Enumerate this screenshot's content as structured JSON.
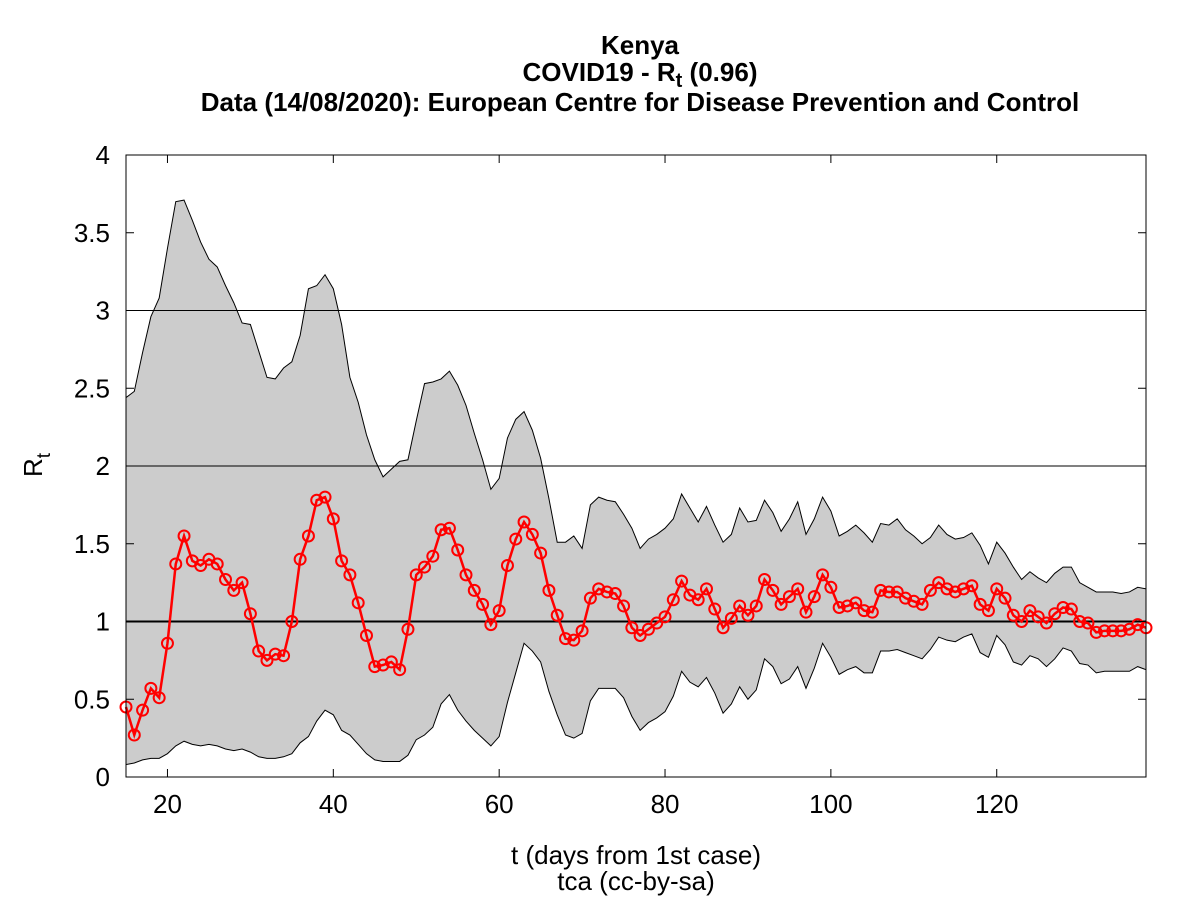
{
  "chart_data": {
    "type": "line",
    "title": "Kenya",
    "subtitle_prefix": "COVID19 - R",
    "subtitle_sub": "t",
    "subtitle_suffix": " (0.96)",
    "source_line": "Data (14/08/2020): European Centre for Disease Prevention and Control",
    "xlabel": "t (days from 1st case)",
    "ylabel": "R",
    "ylabel_sub": "t",
    "credit": "tca (cc-by-sa)",
    "xlim": [
      15,
      138
    ],
    "ylim": [
      0,
      4
    ],
    "xticks": [
      20,
      40,
      60,
      80,
      100,
      120
    ],
    "yticks": [
      0,
      0.5,
      1,
      1.5,
      2,
      2.5,
      3,
      3.5,
      4
    ],
    "ytick_labels": [
      "0",
      "0.5",
      "1",
      "1.5",
      "2",
      "2.5",
      "3",
      "3.5",
      "4"
    ],
    "gridlines_y": [
      1,
      2,
      3
    ],
    "reference_line": 1,
    "colors": {
      "series": "#ff0000",
      "band": "#cccccc",
      "band_edge": "#000000",
      "grid": "#000000"
    },
    "series": [
      {
        "values": [
          [
            15,
            0.45
          ],
          [
            16,
            0.27
          ],
          [
            17,
            0.43
          ],
          [
            18,
            0.57
          ],
          [
            19,
            0.51
          ],
          [
            20,
            0.86
          ],
          [
            21,
            1.37
          ],
          [
            22,
            1.55
          ],
          [
            23,
            1.39
          ],
          [
            24,
            1.36
          ],
          [
            25,
            1.4
          ],
          [
            26,
            1.37
          ],
          [
            27,
            1.27
          ],
          [
            28,
            1.2
          ],
          [
            29,
            1.25
          ],
          [
            30,
            1.05
          ],
          [
            31,
            0.81
          ],
          [
            32,
            0.75
          ],
          [
            33,
            0.79
          ],
          [
            34,
            0.78
          ],
          [
            35,
            1.0
          ],
          [
            36,
            1.4
          ],
          [
            37,
            1.55
          ],
          [
            38,
            1.78
          ],
          [
            39,
            1.8
          ],
          [
            40,
            1.66
          ],
          [
            41,
            1.39
          ],
          [
            42,
            1.3
          ],
          [
            43,
            1.12
          ],
          [
            44,
            0.91
          ],
          [
            45,
            0.71
          ],
          [
            46,
            0.72
          ],
          [
            47,
            0.74
          ],
          [
            48,
            0.69
          ],
          [
            49,
            0.95
          ],
          [
            50,
            1.3
          ],
          [
            51,
            1.35
          ],
          [
            52,
            1.42
          ],
          [
            53,
            1.59
          ],
          [
            54,
            1.6
          ],
          [
            55,
            1.46
          ],
          [
            56,
            1.3
          ],
          [
            57,
            1.2
          ],
          [
            58,
            1.11
          ],
          [
            59,
            0.98
          ],
          [
            60,
            1.07
          ],
          [
            61,
            1.36
          ],
          [
            62,
            1.53
          ],
          [
            63,
            1.64
          ],
          [
            64,
            1.56
          ],
          [
            65,
            1.44
          ],
          [
            66,
            1.2
          ],
          [
            67,
            1.04
          ],
          [
            68,
            0.89
          ],
          [
            69,
            0.88
          ],
          [
            70,
            0.94
          ],
          [
            71,
            1.15
          ],
          [
            72,
            1.21
          ],
          [
            73,
            1.19
          ],
          [
            74,
            1.18
          ],
          [
            75,
            1.1
          ],
          [
            76,
            0.96
          ],
          [
            77,
            0.91
          ],
          [
            78,
            0.95
          ],
          [
            79,
            0.99
          ],
          [
            80,
            1.03
          ],
          [
            81,
            1.14
          ],
          [
            82,
            1.26
          ],
          [
            83,
            1.17
          ],
          [
            84,
            1.14
          ],
          [
            85,
            1.21
          ],
          [
            86,
            1.08
          ],
          [
            87,
            0.96
          ],
          [
            88,
            1.02
          ],
          [
            89,
            1.1
          ],
          [
            90,
            1.04
          ],
          [
            91,
            1.1
          ],
          [
            92,
            1.27
          ],
          [
            93,
            1.2
          ],
          [
            94,
            1.11
          ],
          [
            95,
            1.16
          ],
          [
            96,
            1.21
          ],
          [
            97,
            1.06
          ],
          [
            98,
            1.16
          ],
          [
            99,
            1.3
          ],
          [
            100,
            1.22
          ],
          [
            101,
            1.09
          ],
          [
            102,
            1.1
          ],
          [
            103,
            1.12
          ],
          [
            104,
            1.07
          ],
          [
            105,
            1.06
          ],
          [
            106,
            1.2
          ],
          [
            107,
            1.19
          ],
          [
            108,
            1.19
          ],
          [
            109,
            1.15
          ],
          [
            110,
            1.13
          ],
          [
            111,
            1.11
          ],
          [
            112,
            1.2
          ],
          [
            113,
            1.25
          ],
          [
            114,
            1.21
          ],
          [
            115,
            1.19
          ],
          [
            116,
            1.21
          ],
          [
            117,
            1.23
          ],
          [
            118,
            1.11
          ],
          [
            119,
            1.07
          ],
          [
            120,
            1.21
          ],
          [
            121,
            1.15
          ],
          [
            122,
            1.04
          ],
          [
            123,
            1.0
          ],
          [
            124,
            1.07
          ],
          [
            125,
            1.03
          ],
          [
            126,
            0.99
          ],
          [
            127,
            1.05
          ],
          [
            128,
            1.09
          ],
          [
            129,
            1.08
          ],
          [
            130,
            1.0
          ],
          [
            131,
            0.99
          ],
          [
            132,
            0.93
          ],
          [
            133,
            0.94
          ],
          [
            134,
            0.94
          ],
          [
            135,
            0.94
          ],
          [
            136,
            0.95
          ],
          [
            137,
            0.98
          ],
          [
            138,
            0.96
          ]
        ]
      }
    ],
    "band_upper": [
      [
        15,
        2.44
      ],
      [
        16,
        2.48
      ],
      [
        17,
        2.73
      ],
      [
        18,
        2.96
      ],
      [
        19,
        3.08
      ],
      [
        20,
        3.4
      ],
      [
        21,
        3.7
      ],
      [
        22,
        3.71
      ],
      [
        23,
        3.58
      ],
      [
        24,
        3.44
      ],
      [
        25,
        3.33
      ],
      [
        26,
        3.28
      ],
      [
        27,
        3.16
      ],
      [
        28,
        3.05
      ],
      [
        29,
        2.92
      ],
      [
        30,
        2.91
      ],
      [
        31,
        2.74
      ],
      [
        32,
        2.57
      ],
      [
        33,
        2.56
      ],
      [
        34,
        2.63
      ],
      [
        35,
        2.67
      ],
      [
        36,
        2.84
      ],
      [
        37,
        3.14
      ],
      [
        38,
        3.16
      ],
      [
        39,
        3.23
      ],
      [
        40,
        3.14
      ],
      [
        41,
        2.91
      ],
      [
        42,
        2.57
      ],
      [
        43,
        2.41
      ],
      [
        44,
        2.2
      ],
      [
        45,
        2.04
      ],
      [
        46,
        1.93
      ],
      [
        47,
        1.98
      ],
      [
        48,
        2.03
      ],
      [
        49,
        2.04
      ],
      [
        50,
        2.29
      ],
      [
        51,
        2.53
      ],
      [
        52,
        2.54
      ],
      [
        53,
        2.56
      ],
      [
        54,
        2.61
      ],
      [
        55,
        2.52
      ],
      [
        56,
        2.39
      ],
      [
        57,
        2.21
      ],
      [
        58,
        2.04
      ],
      [
        59,
        1.85
      ],
      [
        60,
        1.92
      ],
      [
        61,
        2.18
      ],
      [
        62,
        2.3
      ],
      [
        63,
        2.35
      ],
      [
        64,
        2.23
      ],
      [
        65,
        2.05
      ],
      [
        66,
        1.79
      ],
      [
        67,
        1.51
      ],
      [
        68,
        1.51
      ],
      [
        69,
        1.55
      ],
      [
        70,
        1.47
      ],
      [
        71,
        1.75
      ],
      [
        72,
        1.8
      ],
      [
        73,
        1.78
      ],
      [
        74,
        1.77
      ],
      [
        75,
        1.69
      ],
      [
        76,
        1.6
      ],
      [
        77,
        1.47
      ],
      [
        78,
        1.53
      ],
      [
        79,
        1.56
      ],
      [
        80,
        1.6
      ],
      [
        81,
        1.66
      ],
      [
        82,
        1.82
      ],
      [
        83,
        1.73
      ],
      [
        84,
        1.64
      ],
      [
        85,
        1.74
      ],
      [
        86,
        1.62
      ],
      [
        87,
        1.51
      ],
      [
        88,
        1.56
      ],
      [
        89,
        1.73
      ],
      [
        90,
        1.64
      ],
      [
        91,
        1.65
      ],
      [
        92,
        1.78
      ],
      [
        93,
        1.7
      ],
      [
        94,
        1.58
      ],
      [
        95,
        1.66
      ],
      [
        96,
        1.77
      ],
      [
        97,
        1.56
      ],
      [
        98,
        1.66
      ],
      [
        99,
        1.8
      ],
      [
        100,
        1.71
      ],
      [
        101,
        1.55
      ],
      [
        102,
        1.58
      ],
      [
        103,
        1.62
      ],
      [
        104,
        1.57
      ],
      [
        105,
        1.51
      ],
      [
        106,
        1.63
      ],
      [
        107,
        1.62
      ],
      [
        108,
        1.66
      ],
      [
        109,
        1.59
      ],
      [
        110,
        1.55
      ],
      [
        111,
        1.5
      ],
      [
        112,
        1.54
      ],
      [
        113,
        1.62
      ],
      [
        114,
        1.56
      ],
      [
        115,
        1.53
      ],
      [
        116,
        1.54
      ],
      [
        117,
        1.57
      ],
      [
        118,
        1.49
      ],
      [
        119,
        1.37
      ],
      [
        120,
        1.51
      ],
      [
        121,
        1.44
      ],
      [
        122,
        1.35
      ],
      [
        123,
        1.27
      ],
      [
        124,
        1.32
      ],
      [
        125,
        1.28
      ],
      [
        126,
        1.25
      ],
      [
        127,
        1.31
      ],
      [
        128,
        1.35
      ],
      [
        129,
        1.35
      ],
      [
        130,
        1.25
      ],
      [
        131,
        1.22
      ],
      [
        132,
        1.19
      ],
      [
        133,
        1.19
      ],
      [
        134,
        1.19
      ],
      [
        135,
        1.18
      ],
      [
        136,
        1.19
      ],
      [
        137,
        1.22
      ],
      [
        138,
        1.21
      ]
    ],
    "band_lower": [
      [
        15,
        0.08
      ],
      [
        16,
        0.09
      ],
      [
        17,
        0.11
      ],
      [
        18,
        0.12
      ],
      [
        19,
        0.12
      ],
      [
        20,
        0.15
      ],
      [
        21,
        0.2
      ],
      [
        22,
        0.23
      ],
      [
        23,
        0.21
      ],
      [
        24,
        0.2
      ],
      [
        25,
        0.21
      ],
      [
        26,
        0.2
      ],
      [
        27,
        0.18
      ],
      [
        28,
        0.17
      ],
      [
        29,
        0.18
      ],
      [
        30,
        0.16
      ],
      [
        31,
        0.13
      ],
      [
        32,
        0.12
      ],
      [
        33,
        0.12
      ],
      [
        34,
        0.13
      ],
      [
        35,
        0.15
      ],
      [
        36,
        0.22
      ],
      [
        37,
        0.26
      ],
      [
        38,
        0.36
      ],
      [
        39,
        0.43
      ],
      [
        40,
        0.4
      ],
      [
        41,
        0.3
      ],
      [
        42,
        0.27
      ],
      [
        43,
        0.21
      ],
      [
        44,
        0.15
      ],
      [
        45,
        0.11
      ],
      [
        46,
        0.1
      ],
      [
        47,
        0.1
      ],
      [
        48,
        0.1
      ],
      [
        49,
        0.14
      ],
      [
        50,
        0.24
      ],
      [
        51,
        0.27
      ],
      [
        52,
        0.32
      ],
      [
        53,
        0.47
      ],
      [
        54,
        0.53
      ],
      [
        55,
        0.43
      ],
      [
        56,
        0.36
      ],
      [
        57,
        0.3
      ],
      [
        58,
        0.25
      ],
      [
        59,
        0.2
      ],
      [
        60,
        0.26
      ],
      [
        61,
        0.48
      ],
      [
        62,
        0.67
      ],
      [
        63,
        0.86
      ],
      [
        64,
        0.81
      ],
      [
        65,
        0.74
      ],
      [
        66,
        0.55
      ],
      [
        67,
        0.4
      ],
      [
        68,
        0.27
      ],
      [
        69,
        0.25
      ],
      [
        70,
        0.28
      ],
      [
        71,
        0.49
      ],
      [
        72,
        0.57
      ],
      [
        73,
        0.57
      ],
      [
        74,
        0.57
      ],
      [
        75,
        0.51
      ],
      [
        76,
        0.39
      ],
      [
        77,
        0.3
      ],
      [
        78,
        0.35
      ],
      [
        79,
        0.38
      ],
      [
        80,
        0.42
      ],
      [
        81,
        0.52
      ],
      [
        82,
        0.68
      ],
      [
        83,
        0.61
      ],
      [
        84,
        0.58
      ],
      [
        85,
        0.64
      ],
      [
        86,
        0.54
      ],
      [
        87,
        0.41
      ],
      [
        88,
        0.47
      ],
      [
        89,
        0.58
      ],
      [
        90,
        0.5
      ],
      [
        91,
        0.56
      ],
      [
        92,
        0.76
      ],
      [
        93,
        0.71
      ],
      [
        94,
        0.6
      ],
      [
        95,
        0.63
      ],
      [
        96,
        0.71
      ],
      [
        97,
        0.57
      ],
      [
        98,
        0.7
      ],
      [
        99,
        0.86
      ],
      [
        100,
        0.77
      ],
      [
        101,
        0.66
      ],
      [
        102,
        0.69
      ],
      [
        103,
        0.71
      ],
      [
        104,
        0.67
      ],
      [
        105,
        0.67
      ],
      [
        106,
        0.81
      ],
      [
        107,
        0.81
      ],
      [
        108,
        0.82
      ],
      [
        109,
        0.8
      ],
      [
        110,
        0.78
      ],
      [
        111,
        0.76
      ],
      [
        112,
        0.82
      ],
      [
        113,
        0.9
      ],
      [
        114,
        0.88
      ],
      [
        115,
        0.87
      ],
      [
        116,
        0.9
      ],
      [
        117,
        0.92
      ],
      [
        118,
        0.8
      ],
      [
        119,
        0.77
      ],
      [
        120,
        0.91
      ],
      [
        121,
        0.85
      ],
      [
        122,
        0.74
      ],
      [
        123,
        0.72
      ],
      [
        124,
        0.78
      ],
      [
        125,
        0.76
      ],
      [
        126,
        0.71
      ],
      [
        127,
        0.76
      ],
      [
        128,
        0.83
      ],
      [
        129,
        0.81
      ],
      [
        130,
        0.73
      ],
      [
        131,
        0.72
      ],
      [
        132,
        0.67
      ],
      [
        133,
        0.68
      ],
      [
        134,
        0.68
      ],
      [
        135,
        0.68
      ],
      [
        136,
        0.68
      ],
      [
        137,
        0.71
      ],
      [
        138,
        0.69
      ]
    ]
  }
}
